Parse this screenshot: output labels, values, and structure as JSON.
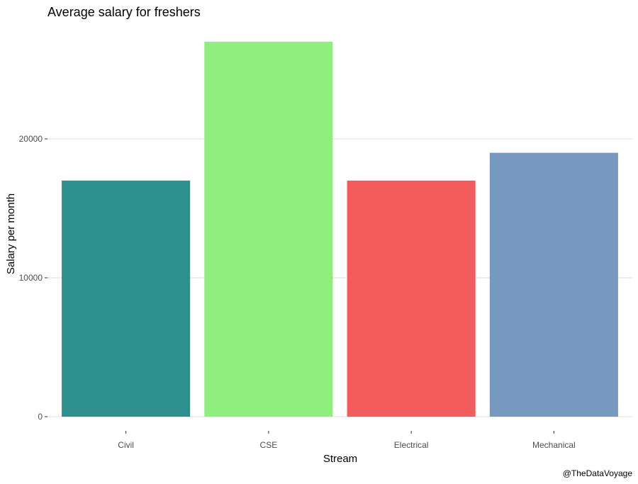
{
  "chart_data": {
    "type": "bar",
    "title": "Average salary for freshers",
    "xlabel": "Stream",
    "ylabel": "Salary per month",
    "caption": "@TheDataVoyage",
    "categories": [
      "Civil",
      "CSE",
      "Electrical",
      "Mechanical"
    ],
    "values": [
      17000,
      27000,
      17000,
      19000
    ],
    "colors": [
      "#2e8f8f",
      "#90ee7e",
      "#f25c5c",
      "#7799c0"
    ],
    "yticks": [
      0,
      10000,
      20000
    ],
    "ytick_labels": [
      "0",
      "10000",
      "20000"
    ],
    "ylim": [
      0,
      28000
    ],
    "grid": "horizontal",
    "legend": "none"
  }
}
